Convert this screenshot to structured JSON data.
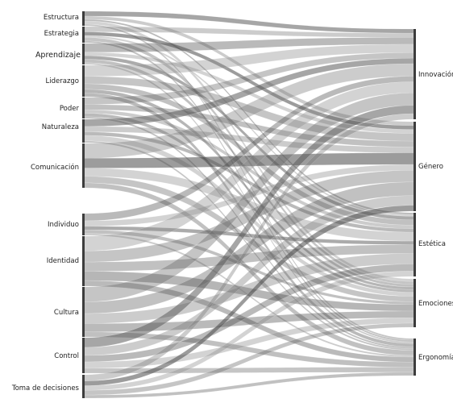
{
  "diagram": {
    "type": "sankey",
    "colors": {
      "link": "#6f6f6f",
      "link_dark": "#3a3a3a",
      "node": "#3d3d3d",
      "node_light": "#8a8a8a"
    },
    "left_nodes": [
      "Estructura",
      "Estrategia",
      "Aprendizaje",
      "Liderazgo",
      "Poder",
      "Naturaleza",
      "Comunicación",
      "Individuo",
      "Identidad",
      "Cultura",
      "Control",
      "Toma de decisiones"
    ],
    "right_nodes": [
      "Innovación",
      "Género",
      "Estética",
      "Emociones",
      "Ergonomía"
    ]
  }
}
